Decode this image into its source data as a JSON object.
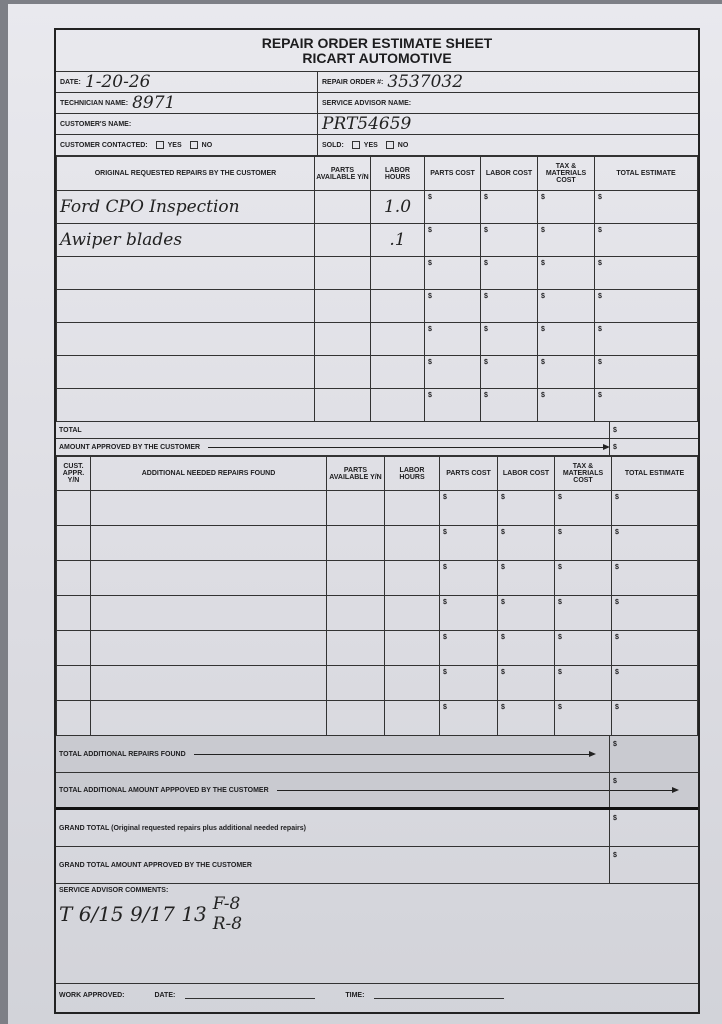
{
  "header": {
    "title": "REPAIR ORDER ESTIMATE SHEET",
    "company": "RICART AUTOMOTIVE"
  },
  "info": {
    "date_label": "DATE:",
    "date": "1-20-26",
    "ro_label": "REPAIR ORDER #:",
    "ro": "3537032",
    "tech_label": "TECHNICIAN NAME:",
    "tech": "8971",
    "advisor_label": "SERVICE ADVISOR NAME:",
    "advisor": "",
    "customer_label": "CUSTOMER'S NAME:",
    "customer": "PRT54659",
    "contacted_label": "CUSTOMER CONTACTED:",
    "sold_label": "SOLD:",
    "yes": "YES",
    "no": "NO"
  },
  "table1": {
    "headers": [
      "ORIGINAL REQUESTED REPAIRS BY THE CUSTOMER",
      "PARTS AVAILABLE Y/N",
      "LABOR HOURS",
      "PARTS COST",
      "LABOR COST",
      "TAX & MATERIALS COST",
      "TOTAL ESTIMATE"
    ],
    "rows": [
      {
        "desc": "Ford CPO Inspection",
        "parts": "",
        "hours": "1.0"
      },
      {
        "desc": "Awiper blades",
        "parts": "",
        "hours": ".1"
      },
      {
        "desc": "",
        "parts": "",
        "hours": ""
      },
      {
        "desc": "",
        "parts": "",
        "hours": ""
      },
      {
        "desc": "",
        "parts": "",
        "hours": ""
      },
      {
        "desc": "",
        "parts": "",
        "hours": ""
      },
      {
        "desc": "",
        "parts": "",
        "hours": ""
      }
    ],
    "total_label": "TOTAL",
    "approved_label": "AMOUNT APPROVED BY THE CUSTOMER"
  },
  "currency": "$",
  "table2": {
    "headers": [
      "CUST. APPR. Y/N",
      "ADDITIONAL NEEDED REPAIRS FOUND",
      "PARTS AVAILABLE Y/N",
      "LABOR HOURS",
      "PARTS COST",
      "LABOR COST",
      "TAX & MATERIALS COST",
      "TOTAL ESTIMATE"
    ],
    "row_count": 7
  },
  "summary": {
    "total_additional": "TOTAL ADDITIONAL REPAIRS FOUND",
    "additional_approved": "TOTAL ADDITIONAL AMOUNT APPPOVED BY THE CUSTOMER",
    "grand_total": "GRAND TOTAL (Original requested repairs plus additional needed repairs)",
    "grand_approved": "GRAND TOTAL AMOUNT APPROVED BY THE CUSTOMER"
  },
  "comments": {
    "label": "SERVICE ADVISOR COMMENTS:",
    "line1": "T 6/15 9/17 13",
    "front": "F-8",
    "rear": "R-8"
  },
  "footer": {
    "work_approved": "WORK APPROVED:",
    "date_label": "DATE:",
    "time_label": "TIME:"
  }
}
